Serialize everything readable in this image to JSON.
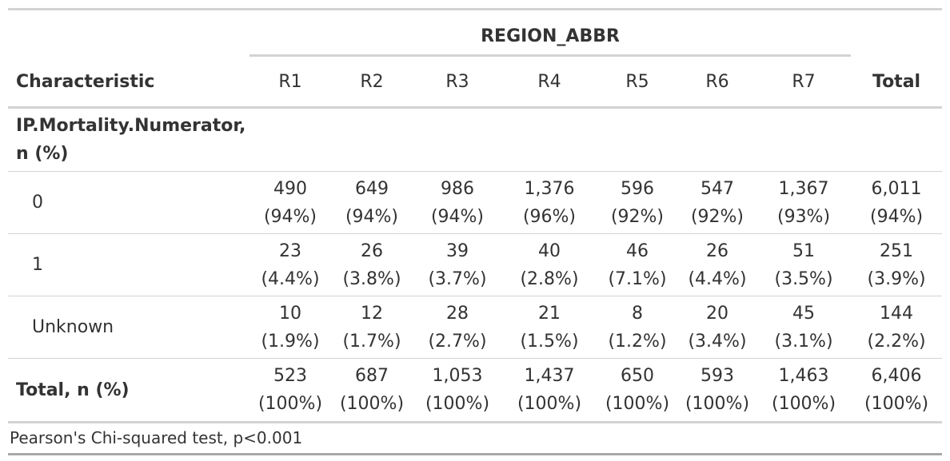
{
  "table": {
    "spanner_label": "REGION_ABBR",
    "characteristic_header": "Characteristic",
    "columns": [
      "R1",
      "R2",
      "R3",
      "R4",
      "R5",
      "R6",
      "R7"
    ],
    "total_header": "Total",
    "group": {
      "label_line1": "IP.Mortality.Numerator,",
      "label_line2": "n (%)"
    },
    "rows": [
      {
        "label": "0",
        "counts": [
          "490",
          "649",
          "986",
          "1,376",
          "596",
          "547",
          "1,367",
          "6,011"
        ],
        "pcts": [
          "(94%)",
          "(94%)",
          "(94%)",
          "(96%)",
          "(92%)",
          "(92%)",
          "(93%)",
          "(94%)"
        ]
      },
      {
        "label": "1",
        "counts": [
          "23",
          "26",
          "39",
          "40",
          "46",
          "26",
          "51",
          "251"
        ],
        "pcts": [
          "(4.4%)",
          "(3.8%)",
          "(3.7%)",
          "(2.8%)",
          "(7.1%)",
          "(4.4%)",
          "(3.5%)",
          "(3.9%)"
        ]
      },
      {
        "label": "Unknown",
        "counts": [
          "10",
          "12",
          "28",
          "21",
          "8",
          "20",
          "45",
          "144"
        ],
        "pcts": [
          "(1.9%)",
          "(1.7%)",
          "(2.7%)",
          "(1.5%)",
          "(1.2%)",
          "(3.4%)",
          "(3.1%)",
          "(2.2%)"
        ]
      }
    ],
    "total_row": {
      "label": "Total, n (%)",
      "counts": [
        "523",
        "687",
        "1,053",
        "1,437",
        "650",
        "593",
        "1,463",
        "6,406"
      ],
      "pcts": [
        "(100%)",
        "(100%)",
        "(100%)",
        "(100%)",
        "(100%)",
        "(100%)",
        "(100%)",
        "(100%)"
      ]
    },
    "footnote": "Pearson's Chi-squared test, p<0.001"
  }
}
